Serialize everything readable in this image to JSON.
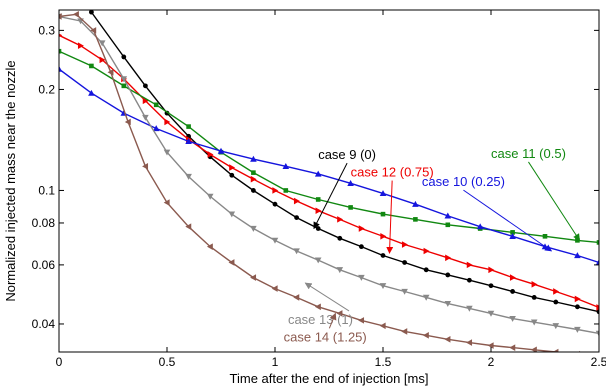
{
  "chart_data": {
    "type": "line",
    "title": "",
    "xlabel": "Time after the end of injection [ms]",
    "ylabel": "Normalized injected mass near the nozzle",
    "xlim": [
      0,
      2.5
    ],
    "ylim": [
      0.033,
      0.345
    ],
    "yscale": "log",
    "grid": false,
    "legend": "inline-annotations",
    "x_ticks": [
      {
        "value": 0,
        "label": "0"
      },
      {
        "value": 0.5,
        "label": "0.5"
      },
      {
        "value": 1,
        "label": "1"
      },
      {
        "value": 1.5,
        "label": "1.5"
      },
      {
        "value": 2,
        "label": "2"
      },
      {
        "value": 2.5,
        "label": "2.5"
      }
    ],
    "y_ticks": [
      {
        "value": 0.04,
        "label": "0.04"
      },
      {
        "value": 0.06,
        "label": "0.06"
      },
      {
        "value": 0.08,
        "label": "0.08"
      },
      {
        "value": 0.1,
        "label": "0.1"
      },
      {
        "value": 0.2,
        "label": "0.2"
      },
      {
        "value": 0.3,
        "label": "0.3"
      }
    ],
    "series": [
      {
        "name": "case 9 (0)",
        "color": "#000000",
        "marker": "circle",
        "x": [
          0.15,
          0.3,
          0.4,
          0.5,
          0.6,
          0.7,
          0.8,
          0.9,
          1.0,
          1.1,
          1.2,
          1.3,
          1.4,
          1.5,
          1.6,
          1.7,
          1.8,
          1.9,
          2.0,
          2.1,
          2.2,
          2.3,
          2.4,
          2.5
        ],
        "y": [
          0.34,
          0.25,
          0.205,
          0.17,
          0.145,
          0.126,
          0.111,
          0.1,
          0.091,
          0.083,
          0.077,
          0.072,
          0.068,
          0.064,
          0.061,
          0.058,
          0.056,
          0.054,
          0.052,
          0.05,
          0.048,
          0.0465,
          0.045,
          0.0435
        ]
      },
      {
        "name": "case 12 (0.75)",
        "color": "#ee0000",
        "marker": "triangle-right",
        "x": [
          0,
          0.1,
          0.2,
          0.3,
          0.4,
          0.5,
          0.6,
          0.7,
          0.8,
          0.9,
          1.0,
          1.1,
          1.2,
          1.3,
          1.4,
          1.5,
          1.6,
          1.7,
          1.8,
          1.9,
          2.0,
          2.1,
          2.2,
          2.3,
          2.4,
          2.5
        ],
        "y": [
          0.29,
          0.27,
          0.245,
          0.215,
          0.185,
          0.16,
          0.142,
          0.128,
          0.117,
          0.108,
          0.1,
          0.093,
          0.087,
          0.082,
          0.077,
          0.073,
          0.069,
          0.066,
          0.063,
          0.06,
          0.058,
          0.055,
          0.0525,
          0.05,
          0.0475,
          0.0448
        ]
      },
      {
        "name": "case 11 (0.5)",
        "color": "#118811",
        "marker": "square",
        "x": [
          0,
          0.15,
          0.3,
          0.45,
          0.6,
          0.75,
          0.9,
          1.05,
          1.2,
          1.35,
          1.5,
          1.65,
          1.8,
          1.95,
          2.1,
          2.25,
          2.4,
          2.5
        ],
        "y": [
          0.26,
          0.235,
          0.205,
          0.18,
          0.155,
          0.13,
          0.113,
          0.1,
          0.094,
          0.089,
          0.085,
          0.082,
          0.079,
          0.077,
          0.075,
          0.073,
          0.071,
          0.07
        ]
      },
      {
        "name": "case 10 (0.25)",
        "color": "#1515dd",
        "marker": "triangle-up",
        "x": [
          0,
          0.15,
          0.3,
          0.45,
          0.6,
          0.75,
          0.9,
          1.05,
          1.2,
          1.35,
          1.5,
          1.65,
          1.8,
          1.95,
          2.1,
          2.25,
          2.4,
          2.5
        ],
        "y": [
          0.23,
          0.195,
          0.17,
          0.153,
          0.14,
          0.131,
          0.124,
          0.118,
          0.112,
          0.105,
          0.098,
          0.091,
          0.084,
          0.078,
          0.073,
          0.068,
          0.064,
          0.061
        ]
      },
      {
        "name": "case 13 (1)",
        "color": "#888888",
        "marker": "triangle-down",
        "x": [
          0,
          0.1,
          0.2,
          0.3,
          0.4,
          0.5,
          0.6,
          0.7,
          0.8,
          0.9,
          1.0,
          1.1,
          1.2,
          1.3,
          1.4,
          1.5,
          1.6,
          1.7,
          1.8,
          1.9,
          2.0,
          2.1,
          2.2,
          2.3,
          2.4,
          2.5
        ],
        "y": [
          0.33,
          0.32,
          0.275,
          0.215,
          0.165,
          0.13,
          0.11,
          0.096,
          0.085,
          0.077,
          0.071,
          0.066,
          0.062,
          0.058,
          0.055,
          0.052,
          0.05,
          0.048,
          0.046,
          0.0445,
          0.043,
          0.0415,
          0.0405,
          0.0395,
          0.0385,
          0.0375
        ]
      },
      {
        "name": "case 14 (1.25)",
        "color": "#8b5a4f",
        "marker": "triangle-left",
        "x": [
          0,
          0.08,
          0.16,
          0.24,
          0.32,
          0.4,
          0.5,
          0.6,
          0.7,
          0.8,
          0.9,
          1.0,
          1.1,
          1.2,
          1.3,
          1.4,
          1.5,
          1.6,
          1.7,
          1.8,
          1.9,
          2.0,
          2.1,
          2.2,
          2.3,
          2.4,
          2.5
        ],
        "y": [
          0.33,
          0.335,
          0.3,
          0.225,
          0.16,
          0.118,
          0.092,
          0.078,
          0.068,
          0.061,
          0.055,
          0.051,
          0.048,
          0.045,
          0.043,
          0.041,
          0.0395,
          0.038,
          0.037,
          0.036,
          0.0352,
          0.0345,
          0.034,
          0.0335,
          0.033,
          0.0325,
          0.032
        ]
      }
    ],
    "annotations": [
      {
        "series": 0,
        "text": "case 9 (0)",
        "color": "#000000",
        "text_at": [
          1.2,
          0.124
        ],
        "arrow_to": [
          1.18,
          0.077
        ]
      },
      {
        "series": 1,
        "text": "case 12 (0.75)",
        "color": "#ee0000",
        "text_at": [
          1.35,
          0.11
        ],
        "arrow_to": [
          1.53,
          0.065
        ]
      },
      {
        "series": 2,
        "text": "case 11 (0.5)",
        "color": "#118811",
        "text_at": [
          2.0,
          0.125
        ],
        "arrow_to": [
          2.41,
          0.071
        ]
      },
      {
        "series": 3,
        "text": "case 10 (0.25)",
        "color": "#1515dd",
        "text_at": [
          1.68,
          0.103
        ],
        "arrow_to": [
          2.28,
          0.066
        ]
      },
      {
        "series": 4,
        "text": "case 13 (1)",
        "color": "#888888",
        "text_at": [
          1.06,
          0.04
        ],
        "arrow_to": [
          1.14,
          0.053
        ]
      },
      {
        "series": 5,
        "text": "case 14 (1.25)",
        "color": "#8b5a4f",
        "text_at": [
          1.04,
          0.0355
        ],
        "arrow_to": [
          1.28,
          0.043
        ]
      }
    ]
  }
}
